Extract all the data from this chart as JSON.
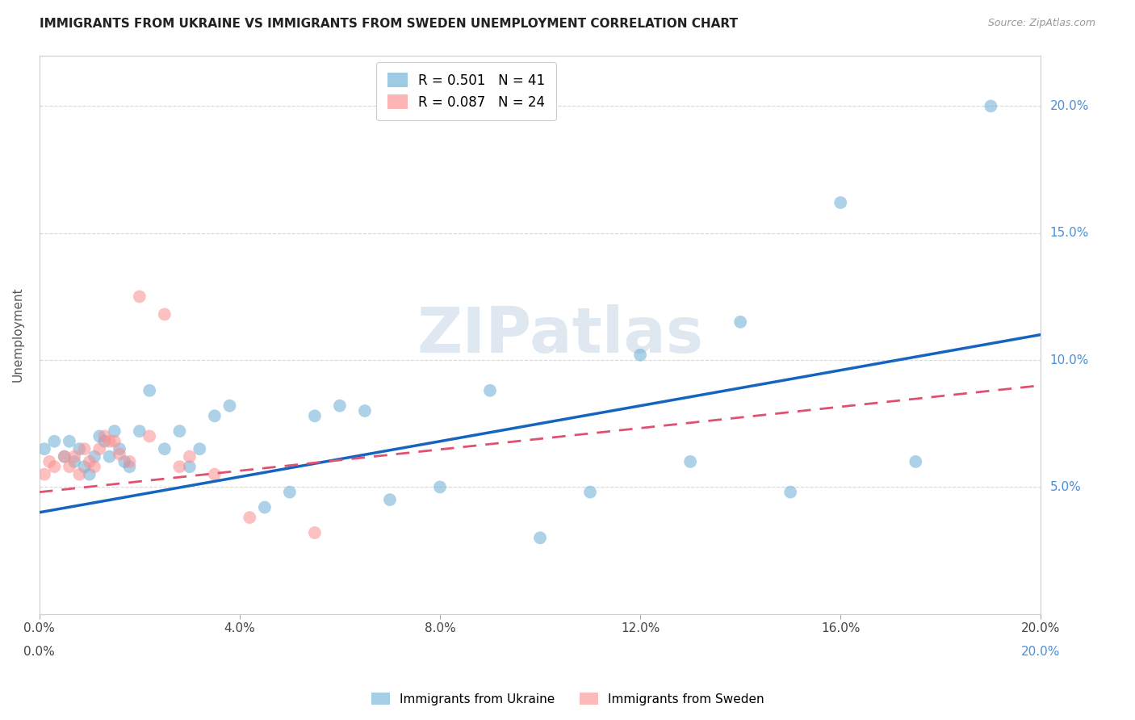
{
  "title": "IMMIGRANTS FROM UKRAINE VS IMMIGRANTS FROM SWEDEN UNEMPLOYMENT CORRELATION CHART",
  "source": "Source: ZipAtlas.com",
  "ylabel": "Unemployment",
  "xlim": [
    0.0,
    0.2
  ],
  "ylim": [
    0.0,
    0.22
  ],
  "watermark": "ZIPatlas",
  "ukraine_color": "#6baed6",
  "sweden_color": "#fc8d8d",
  "ukraine_R": 0.501,
  "ukraine_N": 41,
  "sweden_R": 0.087,
  "sweden_N": 24,
  "ukraine_x": [
    0.001,
    0.003,
    0.005,
    0.006,
    0.007,
    0.008,
    0.009,
    0.01,
    0.011,
    0.012,
    0.013,
    0.014,
    0.015,
    0.016,
    0.017,
    0.018,
    0.02,
    0.022,
    0.025,
    0.028,
    0.03,
    0.032,
    0.035,
    0.038,
    0.045,
    0.05,
    0.055,
    0.06,
    0.065,
    0.07,
    0.08,
    0.09,
    0.1,
    0.11,
    0.12,
    0.13,
    0.14,
    0.15,
    0.16,
    0.175,
    0.19
  ],
  "ukraine_y": [
    0.065,
    0.068,
    0.062,
    0.068,
    0.06,
    0.065,
    0.058,
    0.055,
    0.062,
    0.07,
    0.068,
    0.062,
    0.072,
    0.065,
    0.06,
    0.058,
    0.072,
    0.088,
    0.065,
    0.072,
    0.058,
    0.065,
    0.078,
    0.082,
    0.042,
    0.048,
    0.078,
    0.082,
    0.08,
    0.045,
    0.05,
    0.088,
    0.03,
    0.048,
    0.102,
    0.06,
    0.115,
    0.048,
    0.162,
    0.06,
    0.2
  ],
  "sweden_x": [
    0.001,
    0.002,
    0.003,
    0.005,
    0.006,
    0.007,
    0.008,
    0.009,
    0.01,
    0.011,
    0.012,
    0.013,
    0.014,
    0.015,
    0.016,
    0.018,
    0.02,
    0.022,
    0.025,
    0.028,
    0.03,
    0.035,
    0.042,
    0.055
  ],
  "sweden_y": [
    0.055,
    0.06,
    0.058,
    0.062,
    0.058,
    0.062,
    0.055,
    0.065,
    0.06,
    0.058,
    0.065,
    0.07,
    0.068,
    0.068,
    0.063,
    0.06,
    0.125,
    0.07,
    0.118,
    0.058,
    0.062,
    0.055,
    0.038,
    0.032
  ],
  "background_color": "#ffffff",
  "grid_color": "#d8d8d8",
  "xtick_vals": [
    0.0,
    0.04,
    0.08,
    0.12,
    0.16,
    0.2
  ],
  "ytick_vals": [
    0.05,
    0.1,
    0.15,
    0.2
  ]
}
